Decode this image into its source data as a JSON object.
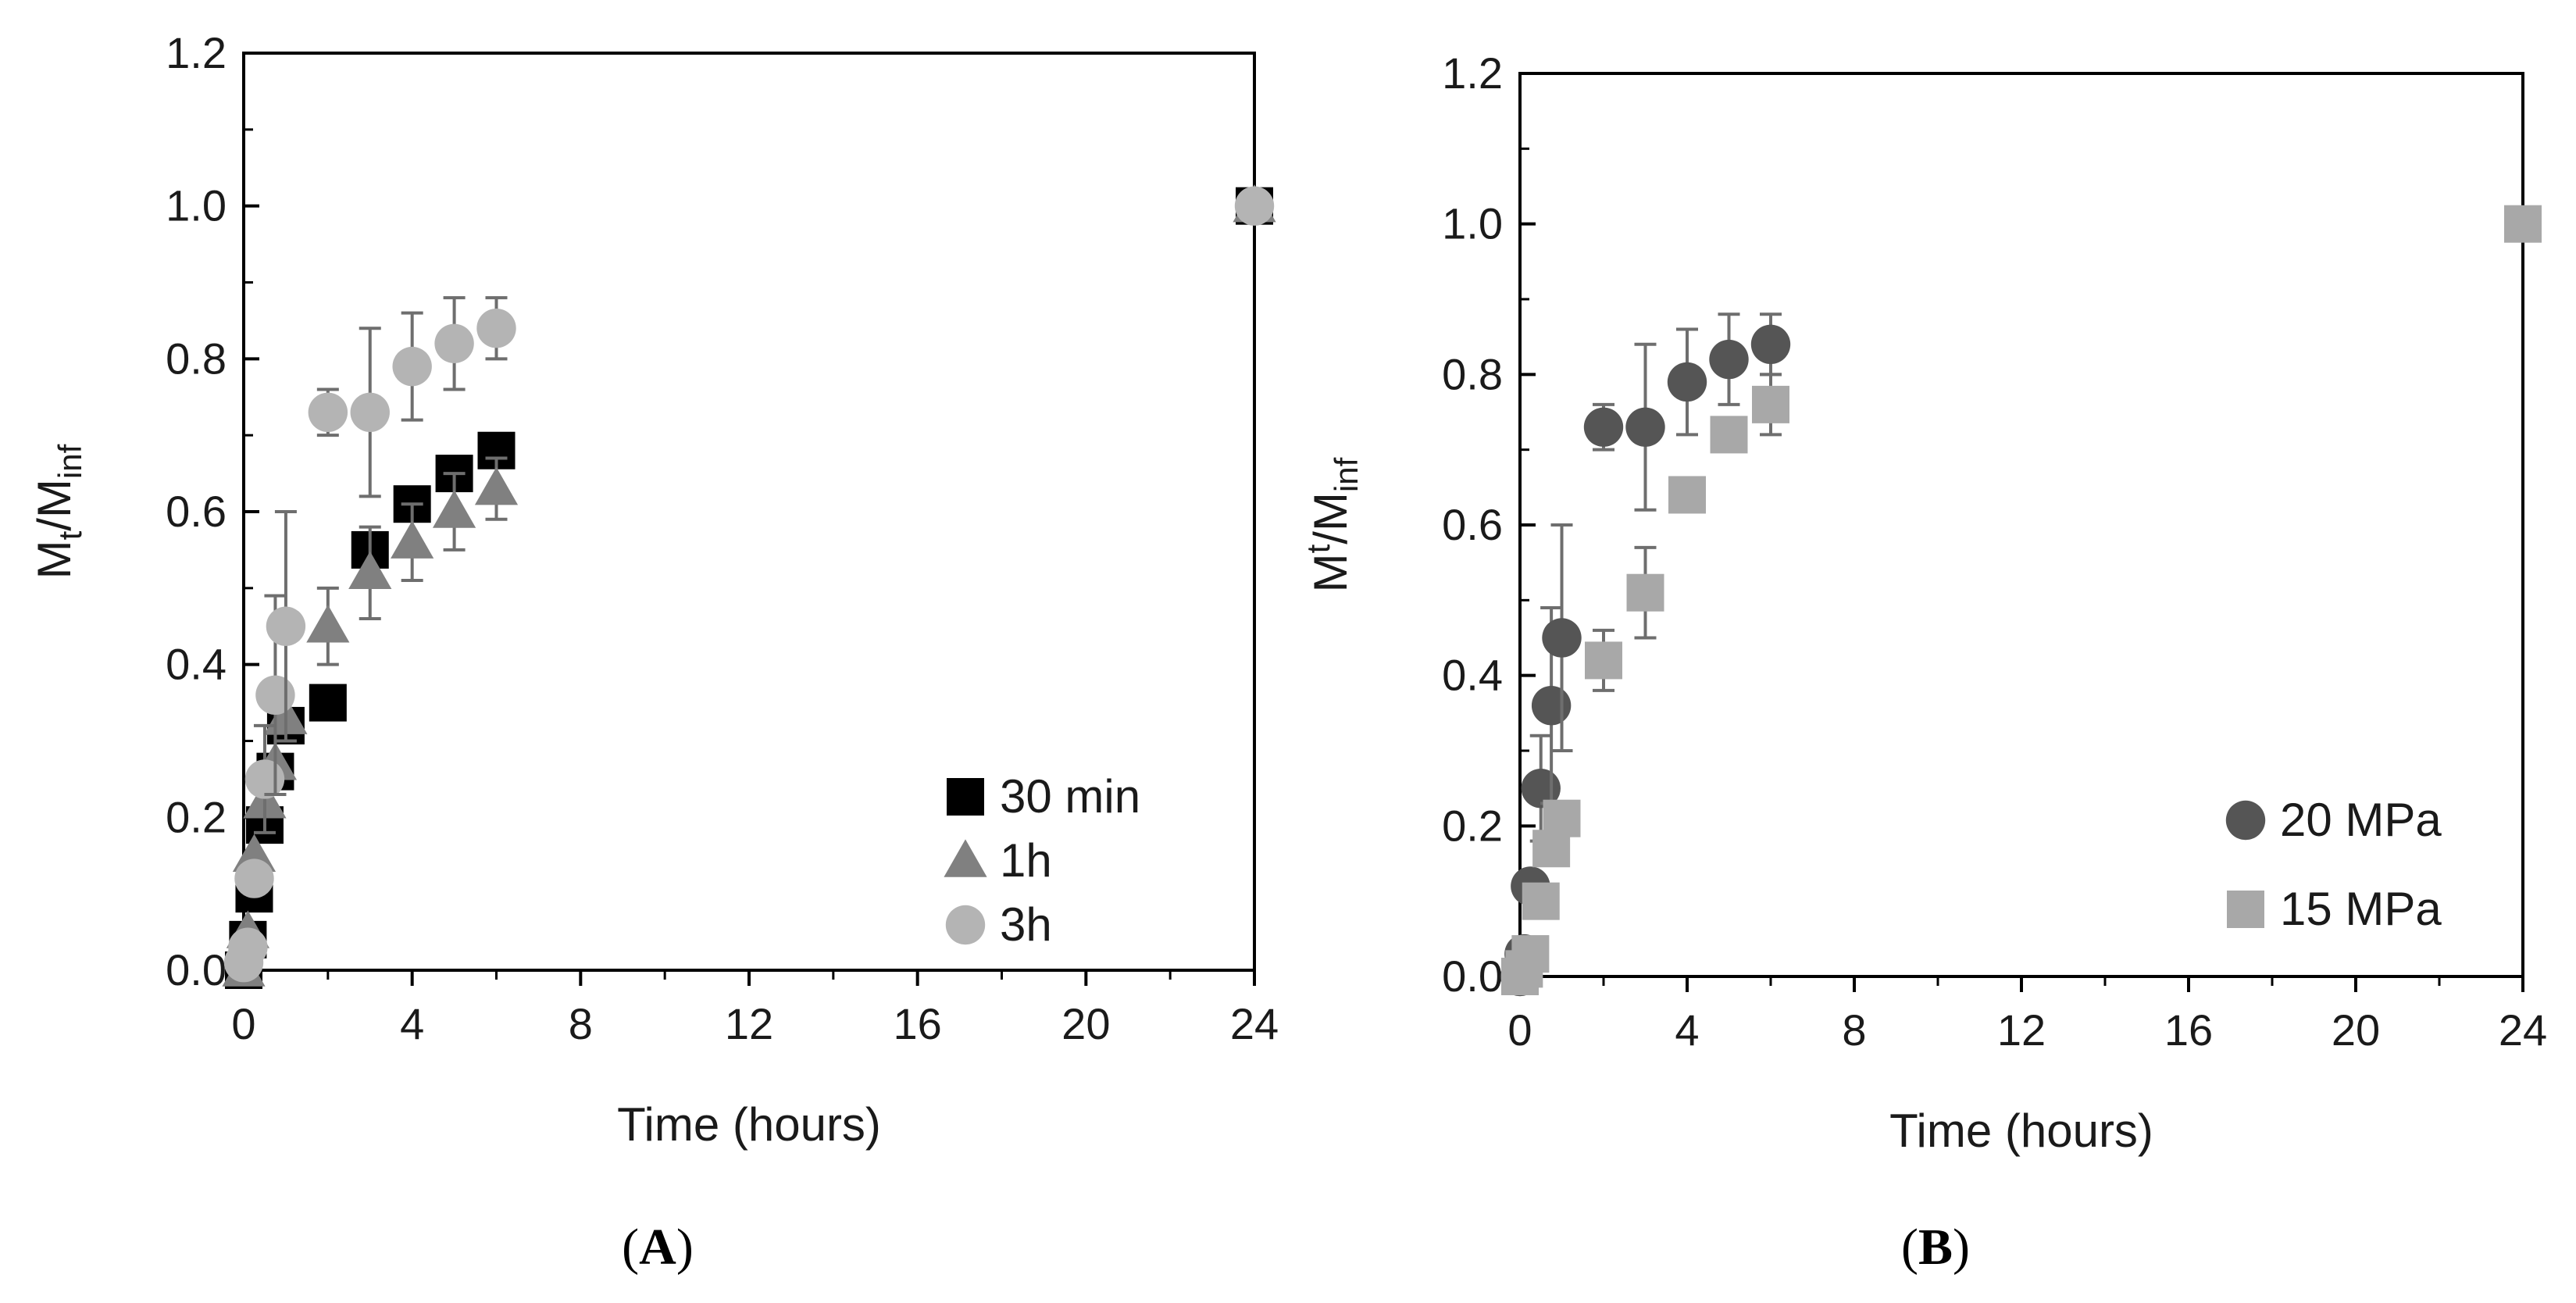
{
  "chart_data": [
    {
      "type": "scatter",
      "panel_label": "A",
      "xlabel": "Time (hours)",
      "ylabel": {
        "main": "M",
        "sub1": "t",
        "mid": "/M",
        "sub2": "inf"
      },
      "xlim": [
        0,
        24
      ],
      "ylim": [
        0,
        1.2
      ],
      "xticks": [
        "0",
        "4",
        "8",
        "12",
        "16",
        "20",
        "24"
      ],
      "yticks": [
        "0.0",
        "0.2",
        "0.4",
        "0.6",
        "0.8",
        "1.0",
        "1.2"
      ],
      "legend_position": "bottom-right",
      "series": [
        {
          "name": "30 min",
          "marker": "square",
          "color": "#000000",
          "points": [
            {
              "x": 0,
              "y": 0.0
            },
            {
              "x": 0.1,
              "y": 0.04
            },
            {
              "x": 0.25,
              "y": 0.1
            },
            {
              "x": 0.5,
              "y": 0.19
            },
            {
              "x": 0.75,
              "y": 0.26
            },
            {
              "x": 1,
              "y": 0.32
            },
            {
              "x": 2,
              "y": 0.35
            },
            {
              "x": 3,
              "y": 0.55
            },
            {
              "x": 4,
              "y": 0.61
            },
            {
              "x": 5,
              "y": 0.65
            },
            {
              "x": 6,
              "y": 0.68
            },
            {
              "x": 24,
              "y": 1.0
            }
          ]
        },
        {
          "name": "1h",
          "marker": "triangle",
          "color": "#808080",
          "points": [
            {
              "x": 0,
              "y": 0.0
            },
            {
              "x": 0.1,
              "y": 0.05
            },
            {
              "x": 0.25,
              "y": 0.15
            },
            {
              "x": 0.5,
              "y": 0.22
            },
            {
              "x": 0.75,
              "y": 0.27,
              "err": 0.04
            },
            {
              "x": 1,
              "y": 0.33
            },
            {
              "x": 2,
              "y": 0.45,
              "err": 0.05
            },
            {
              "x": 3,
              "y": 0.52,
              "err": 0.06
            },
            {
              "x": 4,
              "y": 0.56,
              "err": 0.05
            },
            {
              "x": 5,
              "y": 0.6,
              "err": 0.05
            },
            {
              "x": 6,
              "y": 0.63,
              "err": 0.04
            },
            {
              "x": 24,
              "y": 1.0
            }
          ]
        },
        {
          "name": "3h",
          "marker": "circle",
          "color": "#b4b4b4",
          "points": [
            {
              "x": 0,
              "y": 0.01
            },
            {
              "x": 0.1,
              "y": 0.03
            },
            {
              "x": 0.25,
              "y": 0.12
            },
            {
              "x": 0.5,
              "y": 0.25,
              "err": 0.07
            },
            {
              "x": 0.75,
              "y": 0.36,
              "err": 0.13
            },
            {
              "x": 1,
              "y": 0.45,
              "err": 0.15
            },
            {
              "x": 2,
              "y": 0.73,
              "err": 0.03
            },
            {
              "x": 3,
              "y": 0.73,
              "err": 0.11
            },
            {
              "x": 4,
              "y": 0.79,
              "err": 0.07
            },
            {
              "x": 5,
              "y": 0.82,
              "err": 0.06
            },
            {
              "x": 6,
              "y": 0.84,
              "err": 0.04
            },
            {
              "x": 24,
              "y": 1.0
            }
          ]
        }
      ]
    },
    {
      "type": "scatter",
      "panel_label": "B",
      "xlabel": "Time (hours)",
      "ylabel": {
        "main": "M",
        "sup1": "t",
        "mid": "/M",
        "sub2": "inf"
      },
      "xlim": [
        0,
        24
      ],
      "ylim": [
        0,
        1.2
      ],
      "xticks": [
        "0",
        "4",
        "8",
        "12",
        "16",
        "20",
        "24"
      ],
      "yticks": [
        "0.0",
        "0.2",
        "0.4",
        "0.6",
        "0.8",
        "1.0",
        "1.2"
      ],
      "legend_position": "bottom-right",
      "series": [
        {
          "name": "20 MPa",
          "marker": "circle",
          "color": "#555555",
          "points": [
            {
              "x": 0,
              "y": 0.0
            },
            {
              "x": 0.1,
              "y": 0.03
            },
            {
              "x": 0.25,
              "y": 0.12
            },
            {
              "x": 0.5,
              "y": 0.25,
              "err": 0.07
            },
            {
              "x": 0.75,
              "y": 0.36,
              "err": 0.13
            },
            {
              "x": 1,
              "y": 0.45,
              "err": 0.15
            },
            {
              "x": 2,
              "y": 0.73,
              "err": 0.03
            },
            {
              "x": 3,
              "y": 0.73,
              "err": 0.11
            },
            {
              "x": 4,
              "y": 0.79,
              "err": 0.07
            },
            {
              "x": 5,
              "y": 0.82,
              "err": 0.06
            },
            {
              "x": 6,
              "y": 0.84,
              "err": 0.04
            }
          ]
        },
        {
          "name": "15 MPa",
          "marker": "square",
          "color": "#a8a8a8",
          "points": [
            {
              "x": 0,
              "y": 0.0
            },
            {
              "x": 0.1,
              "y": 0.01
            },
            {
              "x": 0.25,
              "y": 0.03
            },
            {
              "x": 0.5,
              "y": 0.1
            },
            {
              "x": 0.75,
              "y": 0.17
            },
            {
              "x": 1,
              "y": 0.21
            },
            {
              "x": 2,
              "y": 0.42,
              "err": 0.04
            },
            {
              "x": 3,
              "y": 0.51,
              "err": 0.06
            },
            {
              "x": 4,
              "y": 0.64
            },
            {
              "x": 5,
              "y": 0.72
            },
            {
              "x": 6,
              "y": 0.76,
              "err": 0.04
            },
            {
              "x": 24,
              "y": 1.0
            }
          ]
        }
      ]
    }
  ]
}
